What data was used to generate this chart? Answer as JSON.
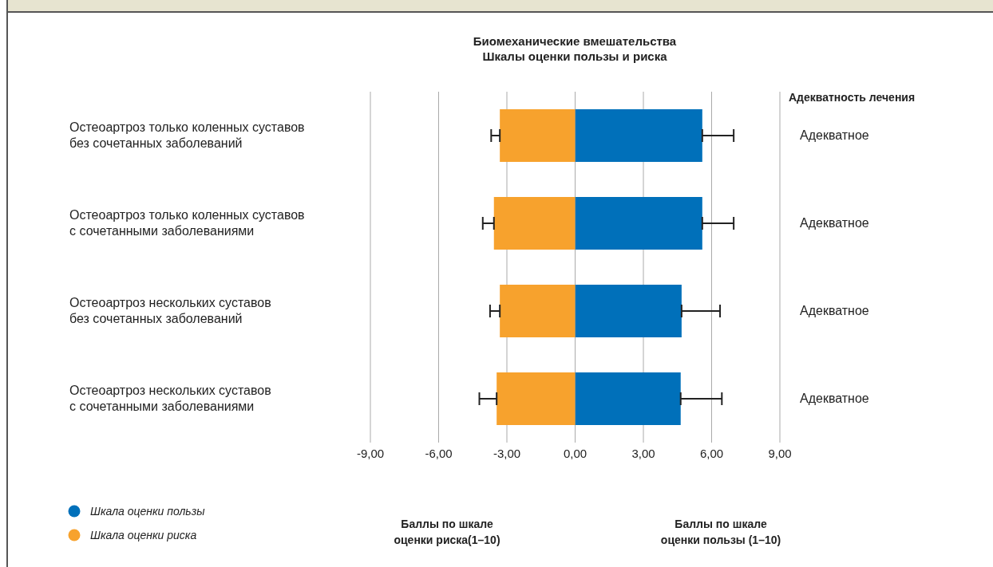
{
  "chart_data": {
    "type": "bar",
    "orientation": "horizontal",
    "stacked": true,
    "title": "Биомеханические вмешательства",
    "subtitle": "Шкалы оценки пользы и риска",
    "categories": [
      "Остеоартроз только коленных суставов\nбез сочетанных заболеваний",
      "Остеоартроз только коленных суставов\nс сочетанными заболеваниями",
      "Остеоартроз нескольких суставов\nбез сочетанных заболеваний",
      "Остеоартроз нескольких суставов\nс сочетанными заболеваниями"
    ],
    "y2label": "Адекватность лечения",
    "y2_categories": [
      "Адекватное",
      "Адекватное",
      "Адекватное",
      "Адекватное"
    ],
    "series": [
      {
        "name": "Шкала оценки пользы",
        "color": "#0070ba",
        "values": [
          5.59,
          5.59,
          4.68,
          4.64
        ],
        "errors": [
          [
            5.59,
            6.97
          ],
          [
            5.59,
            6.97
          ],
          [
            4.68,
            6.37
          ],
          [
            4.64,
            6.45
          ]
        ]
      },
      {
        "name": "Шкала оценки риска",
        "color": "#f7a22d",
        "values": [
          -3.31,
          -3.57,
          -3.31,
          -3.45
        ],
        "errors": [
          [
            -3.69,
            -3.31
          ],
          [
            -4.06,
            -3.57
          ],
          [
            -3.74,
            -3.31
          ],
          [
            -4.21,
            -3.45
          ]
        ]
      }
    ],
    "xlim": [
      -9,
      9
    ],
    "xticks": [
      {
        "value": -9,
        "label": "-9,00"
      },
      {
        "value": -6,
        "label": "-6,00"
      },
      {
        "value": -3,
        "label": "-3,00"
      },
      {
        "value": 0,
        "label": "0,00"
      },
      {
        "value": 3,
        "label": "3,00"
      },
      {
        "value": 6,
        "label": "6,00"
      },
      {
        "value": 9,
        "label": "9,00"
      }
    ],
    "grid": "x",
    "legend": "bottom left",
    "annotations": [
      "Баллы по шкале\nоценки риска(1–10)",
      "Баллы по шкале\nоценки пользы (1–10)"
    ]
  }
}
